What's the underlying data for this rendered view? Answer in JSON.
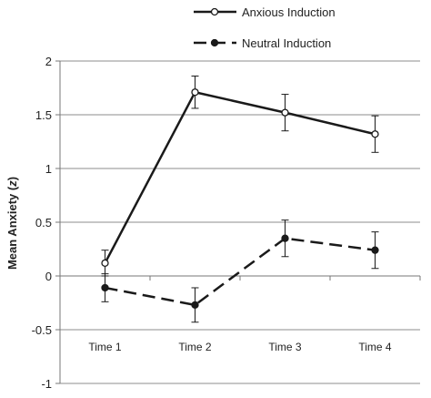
{
  "chart_data": {
    "type": "line",
    "title": "",
    "xlabel": "",
    "ylabel": "Mean Anxiety (z)",
    "ylabel_main": "Mean Anxiety (",
    "ylabel_var": "z",
    "ylabel_close": ")",
    "categories": [
      "Time 1",
      "Time 2",
      "Time 3",
      "Time 4"
    ],
    "ylim": [
      -1,
      2
    ],
    "yticks": [
      2,
      1.5,
      1,
      0.5,
      0,
      -0.5,
      -1
    ],
    "ytick_labels": [
      "2",
      "1.5",
      "1",
      "0.5",
      "0",
      "-0.5",
      "-1"
    ],
    "grid": true,
    "legend_position": "top",
    "series": [
      {
        "name": "Anxious Induction",
        "marker": "open-circle",
        "line_style": "solid",
        "values": [
          0.12,
          1.71,
          1.52,
          1.32
        ],
        "error": [
          0.12,
          0.15,
          0.17,
          0.17
        ]
      },
      {
        "name": "Neutral Induction",
        "marker": "filled-circle",
        "line_style": "dashed",
        "values": [
          -0.11,
          -0.27,
          0.35,
          0.24
        ],
        "error": [
          0.13,
          0.16,
          0.17,
          0.17
        ]
      }
    ],
    "colors": {
      "line": "#1a1a1a",
      "grid": "#8c8c8c",
      "axis": "#777777"
    }
  }
}
